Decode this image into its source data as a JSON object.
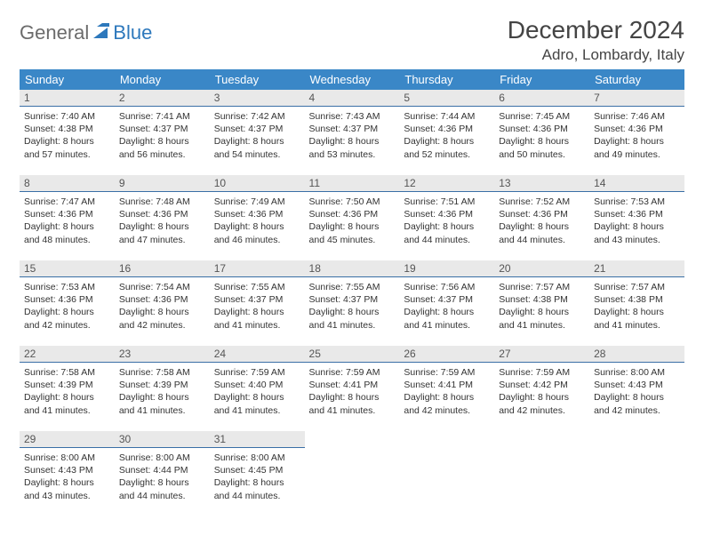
{
  "brand": {
    "part1": "General",
    "part2": "Blue",
    "accent": "#2d78bc",
    "gray": "#6b6b6b"
  },
  "title": "December 2024",
  "location": "Adro, Lombardy, Italy",
  "colors": {
    "header_bg": "#3a87c7",
    "header_text": "#ffffff",
    "row_border": "#3a6fa6",
    "daynum_bg": "#e9e9e9",
    "text": "#333333",
    "title_color": "#444444",
    "bg": "#ffffff"
  },
  "weekdays": [
    "Sunday",
    "Monday",
    "Tuesday",
    "Wednesday",
    "Thursday",
    "Friday",
    "Saturday"
  ],
  "days": [
    {
      "n": 1,
      "sunrise": "7:40 AM",
      "sunset": "4:38 PM",
      "daylight": "8 hours and 57 minutes."
    },
    {
      "n": 2,
      "sunrise": "7:41 AM",
      "sunset": "4:37 PM",
      "daylight": "8 hours and 56 minutes."
    },
    {
      "n": 3,
      "sunrise": "7:42 AM",
      "sunset": "4:37 PM",
      "daylight": "8 hours and 54 minutes."
    },
    {
      "n": 4,
      "sunrise": "7:43 AM",
      "sunset": "4:37 PM",
      "daylight": "8 hours and 53 minutes."
    },
    {
      "n": 5,
      "sunrise": "7:44 AM",
      "sunset": "4:36 PM",
      "daylight": "8 hours and 52 minutes."
    },
    {
      "n": 6,
      "sunrise": "7:45 AM",
      "sunset": "4:36 PM",
      "daylight": "8 hours and 50 minutes."
    },
    {
      "n": 7,
      "sunrise": "7:46 AM",
      "sunset": "4:36 PM",
      "daylight": "8 hours and 49 minutes."
    },
    {
      "n": 8,
      "sunrise": "7:47 AM",
      "sunset": "4:36 PM",
      "daylight": "8 hours and 48 minutes."
    },
    {
      "n": 9,
      "sunrise": "7:48 AM",
      "sunset": "4:36 PM",
      "daylight": "8 hours and 47 minutes."
    },
    {
      "n": 10,
      "sunrise": "7:49 AM",
      "sunset": "4:36 PM",
      "daylight": "8 hours and 46 minutes."
    },
    {
      "n": 11,
      "sunrise": "7:50 AM",
      "sunset": "4:36 PM",
      "daylight": "8 hours and 45 minutes."
    },
    {
      "n": 12,
      "sunrise": "7:51 AM",
      "sunset": "4:36 PM",
      "daylight": "8 hours and 44 minutes."
    },
    {
      "n": 13,
      "sunrise": "7:52 AM",
      "sunset": "4:36 PM",
      "daylight": "8 hours and 44 minutes."
    },
    {
      "n": 14,
      "sunrise": "7:53 AM",
      "sunset": "4:36 PM",
      "daylight": "8 hours and 43 minutes."
    },
    {
      "n": 15,
      "sunrise": "7:53 AM",
      "sunset": "4:36 PM",
      "daylight": "8 hours and 42 minutes."
    },
    {
      "n": 16,
      "sunrise": "7:54 AM",
      "sunset": "4:36 PM",
      "daylight": "8 hours and 42 minutes."
    },
    {
      "n": 17,
      "sunrise": "7:55 AM",
      "sunset": "4:37 PM",
      "daylight": "8 hours and 41 minutes."
    },
    {
      "n": 18,
      "sunrise": "7:55 AM",
      "sunset": "4:37 PM",
      "daylight": "8 hours and 41 minutes."
    },
    {
      "n": 19,
      "sunrise": "7:56 AM",
      "sunset": "4:37 PM",
      "daylight": "8 hours and 41 minutes."
    },
    {
      "n": 20,
      "sunrise": "7:57 AM",
      "sunset": "4:38 PM",
      "daylight": "8 hours and 41 minutes."
    },
    {
      "n": 21,
      "sunrise": "7:57 AM",
      "sunset": "4:38 PM",
      "daylight": "8 hours and 41 minutes."
    },
    {
      "n": 22,
      "sunrise": "7:58 AM",
      "sunset": "4:39 PM",
      "daylight": "8 hours and 41 minutes."
    },
    {
      "n": 23,
      "sunrise": "7:58 AM",
      "sunset": "4:39 PM",
      "daylight": "8 hours and 41 minutes."
    },
    {
      "n": 24,
      "sunrise": "7:59 AM",
      "sunset": "4:40 PM",
      "daylight": "8 hours and 41 minutes."
    },
    {
      "n": 25,
      "sunrise": "7:59 AM",
      "sunset": "4:41 PM",
      "daylight": "8 hours and 41 minutes."
    },
    {
      "n": 26,
      "sunrise": "7:59 AM",
      "sunset": "4:41 PM",
      "daylight": "8 hours and 42 minutes."
    },
    {
      "n": 27,
      "sunrise": "7:59 AM",
      "sunset": "4:42 PM",
      "daylight": "8 hours and 42 minutes."
    },
    {
      "n": 28,
      "sunrise": "8:00 AM",
      "sunset": "4:43 PM",
      "daylight": "8 hours and 42 minutes."
    },
    {
      "n": 29,
      "sunrise": "8:00 AM",
      "sunset": "4:43 PM",
      "daylight": "8 hours and 43 minutes."
    },
    {
      "n": 30,
      "sunrise": "8:00 AM",
      "sunset": "4:44 PM",
      "daylight": "8 hours and 44 minutes."
    },
    {
      "n": 31,
      "sunrise": "8:00 AM",
      "sunset": "4:45 PM",
      "daylight": "8 hours and 44 minutes."
    }
  ],
  "labels": {
    "sunrise": "Sunrise:",
    "sunset": "Sunset:",
    "daylight": "Daylight:"
  },
  "layout": {
    "start_weekday": 0,
    "cols": 7
  }
}
